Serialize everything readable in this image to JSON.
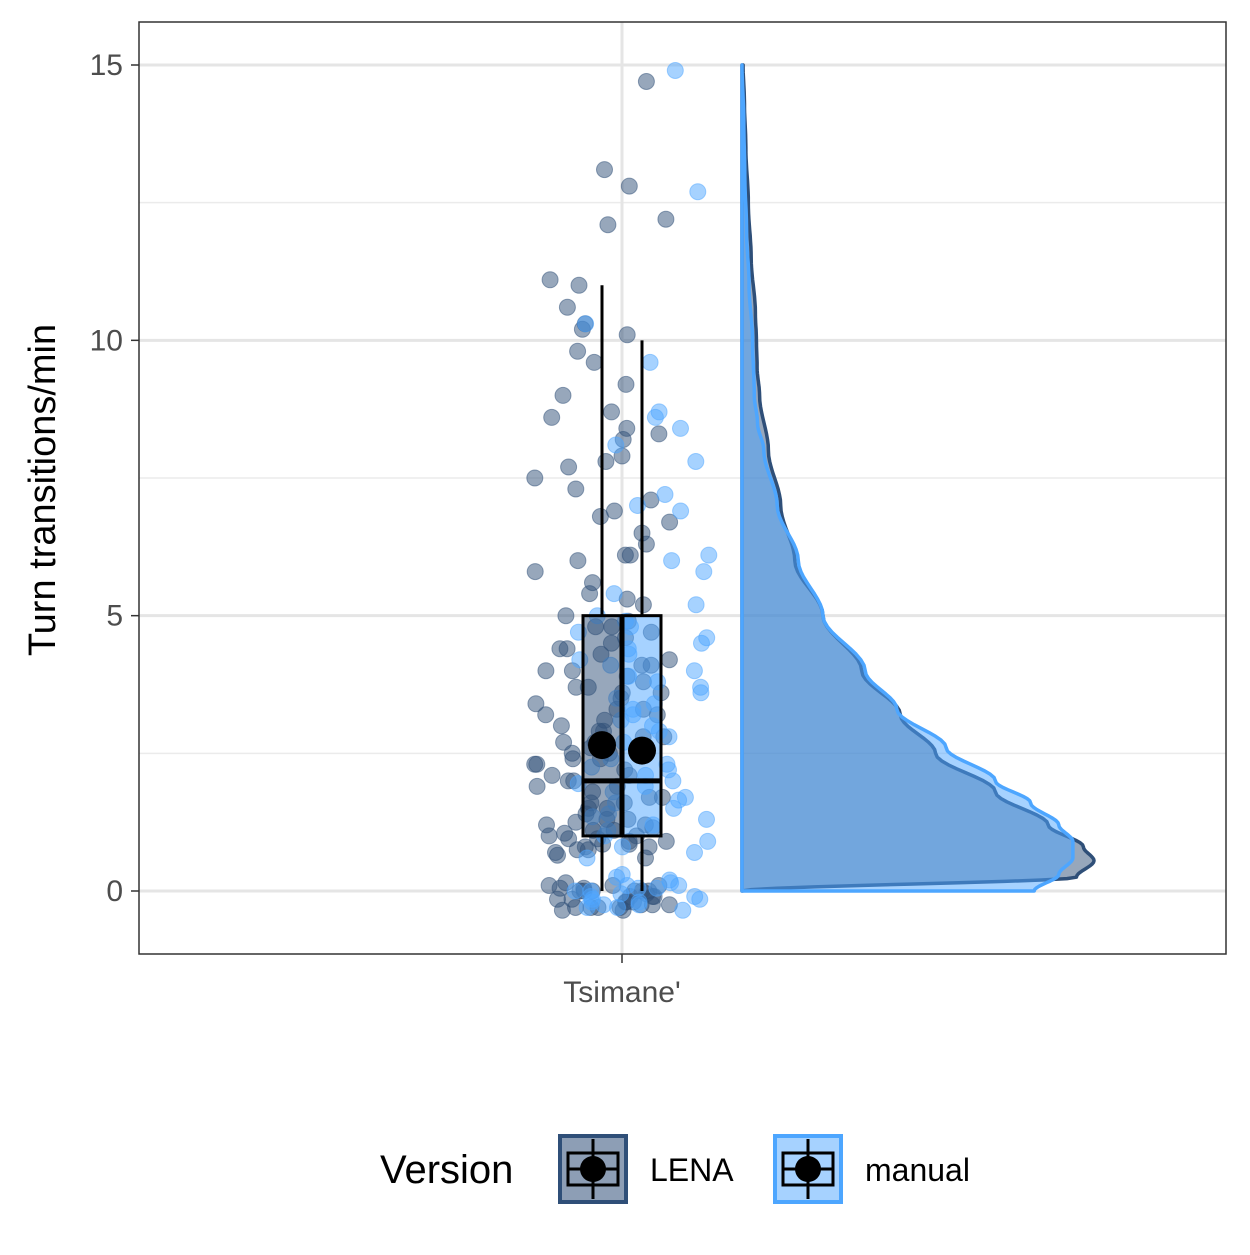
{
  "chart_data": {
    "type": "raincloud",
    "title": "",
    "xlabel": "",
    "ylabel": "Turn transitions/min",
    "categories": [
      "Tsimane'"
    ],
    "ylim": [
      -1.15,
      15.8
    ],
    "y_ticks": [
      0,
      5,
      10,
      15
    ],
    "grid": true,
    "legend": {
      "title": "Version",
      "position": "bottom"
    },
    "series": [
      {
        "name": "LENA",
        "color": "#2f4f78",
        "boxplot": {
          "min": 0,
          "q1": 1,
          "median": 2,
          "q3": 5,
          "max": 11,
          "mean": 2.65
        },
        "points": [
          -0.35,
          -0.3,
          -0.3,
          -0.25,
          -0.2,
          -0.2,
          -0.15,
          -0.1,
          -0.1,
          -0.05,
          0,
          0,
          0,
          0.05,
          0.1,
          0.15,
          -0.35,
          -0.25,
          -0.1,
          0,
          0.1,
          -0.3,
          -0.2,
          0.05,
          -0.15,
          0,
          0.1,
          -0.25,
          -0.3,
          0,
          0.6,
          0.65,
          0.7,
          0.75,
          0.8,
          0.85,
          0.9,
          0.95,
          1.0,
          1.05,
          1.1,
          1.15,
          1.2,
          1.25,
          1.3,
          0.8,
          0.9,
          1.0,
          1.1,
          1.2,
          1.3,
          0.75,
          0.85,
          0.95,
          1.4,
          1.5,
          1.6,
          1.7,
          1.8,
          1.9,
          2.0,
          2.1,
          2.2,
          2.3,
          2.4,
          2.5,
          2.6,
          2.7,
          2.8,
          2.9,
          1.5,
          1.7,
          1.9,
          2.1,
          2.3,
          2.5,
          2.7,
          2.9,
          1.6,
          2.0,
          2.4,
          2.8,
          3.0,
          3.1,
          3.2,
          3.3,
          3.4,
          3.5,
          3.6,
          3.7,
          3.8,
          3.9,
          4.0,
          4.1,
          4.2,
          4.3,
          4.4,
          4.5,
          4.6,
          4.7,
          4.8,
          4.9,
          3.2,
          3.6,
          4.0,
          4.4,
          4.8,
          3.3,
          3.7,
          4.1,
          5.0,
          5.2,
          5.4,
          5.6,
          5.8,
          6.0,
          6.1,
          6.3,
          6.5,
          6.7,
          6.9,
          7.1,
          7.3,
          7.5,
          7.7,
          7.8,
          7.9,
          5.3,
          6.1,
          6.8,
          8.2,
          8.3,
          8.4,
          8.6,
          8.7,
          9.0,
          9.2,
          9.6,
          9.8,
          10.1,
          10.2,
          10.3,
          10.6,
          11.0,
          11.1,
          12.1,
          12.2,
          12.8,
          13.1,
          14.7
        ],
        "density": [
          [
            0,
            0
          ],
          [
            0.25,
            0.95
          ],
          [
            0.55,
            1.0
          ],
          [
            0.8,
            0.97
          ],
          [
            1.2,
            0.87
          ],
          [
            1.8,
            0.72
          ],
          [
            2.5,
            0.55
          ],
          [
            3.2,
            0.45
          ],
          [
            4.0,
            0.34
          ],
          [
            5.0,
            0.23
          ],
          [
            6.0,
            0.15
          ],
          [
            7.0,
            0.11
          ],
          [
            8.0,
            0.075
          ],
          [
            9.0,
            0.05
          ],
          [
            9.5,
            0.043
          ],
          [
            10.0,
            0.041
          ],
          [
            10.5,
            0.038
          ],
          [
            11.5,
            0.026
          ],
          [
            12.5,
            0.018
          ],
          [
            13.5,
            0.011
          ],
          [
            14.3,
            0.007
          ],
          [
            15.0,
            0.003
          ]
        ]
      },
      {
        "name": "manual",
        "color": "#4da6ff",
        "boxplot": {
          "min": 0,
          "q1": 1,
          "median": 2,
          "q3": 5,
          "max": 10,
          "mean": 2.55
        },
        "points": [
          -0.35,
          -0.3,
          -0.25,
          -0.2,
          -0.15,
          -0.1,
          -0.05,
          0,
          0.05,
          0.1,
          -0.3,
          -0.2,
          -0.1,
          0,
          0.1,
          0.15,
          0.2,
          0.3,
          -0.25,
          0.05,
          -0.15,
          0.25,
          0.6,
          0.7,
          0.8,
          0.9,
          1.0,
          1.1,
          1.2,
          1.3,
          1.4,
          1.5,
          1.6,
          1.7,
          1.8,
          1.9,
          2.0,
          2.1,
          2.2,
          2.3,
          2.4,
          1.35,
          1.65,
          1.95,
          2.25,
          2.5,
          2.6,
          2.7,
          2.8,
          2.9,
          3.0,
          3.1,
          3.2,
          3.3,
          3.4,
          3.5,
          3.6,
          3.7,
          3.8,
          3.9,
          4.0,
          4.1,
          4.2,
          4.3,
          4.4,
          4.5,
          4.6,
          4.7,
          4.8,
          4.9,
          5.0,
          5.2,
          5.4,
          5.8,
          6.0,
          6.1,
          6.9,
          7.0,
          7.2,
          7.8,
          8.1,
          8.4,
          8.6,
          8.7,
          9.6,
          10.3,
          12.7,
          14.9
        ],
        "density": [
          [
            0,
            0.83
          ],
          [
            0.3,
            0.9
          ],
          [
            0.6,
            0.94
          ],
          [
            0.9,
            0.94
          ],
          [
            1.2,
            0.9
          ],
          [
            1.6,
            0.82
          ],
          [
            2.0,
            0.72
          ],
          [
            2.6,
            0.58
          ],
          [
            3.3,
            0.44
          ],
          [
            4.0,
            0.35
          ],
          [
            5.0,
            0.23
          ],
          [
            6.0,
            0.16
          ],
          [
            7.0,
            0.1
          ],
          [
            8.0,
            0.062
          ],
          [
            8.5,
            0.044
          ],
          [
            9.0,
            0.035
          ],
          [
            10.0,
            0.03
          ],
          [
            11.0,
            0.02
          ],
          [
            12.0,
            0.013
          ],
          [
            13.0,
            0.008
          ],
          [
            14.0,
            0.005
          ],
          [
            15.0,
            0.0
          ]
        ]
      }
    ]
  }
}
